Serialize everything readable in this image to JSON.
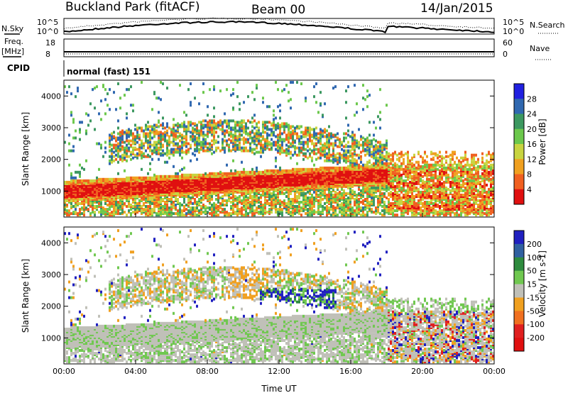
{
  "header": {
    "site": "Buckland Park (fitACF)",
    "beam": "Beam 00",
    "date": "14/Jan/2015"
  },
  "noise_panel": {
    "left_label": "N.Sky",
    "right_label": "N.Search",
    "left_ticks": [
      "10^5",
      "10^0"
    ],
    "right_ticks": [
      "10^5",
      "10^0"
    ]
  },
  "freq_panel": {
    "left_label": "Freq.",
    "left_unit": "[MHz]",
    "left_ticks": [
      "18",
      "8"
    ],
    "right_label": "Nave",
    "right_ticks": [
      "60",
      "0"
    ]
  },
  "cpid": {
    "label": "CPID",
    "value": "normal (fast) 151"
  },
  "chart_data": [
    {
      "type": "heatmap",
      "name": "power",
      "ylabel": "Slant Range [km]",
      "yticks": [
        1000,
        2000,
        3000,
        4000
      ],
      "ylim": [
        180,
        4500
      ],
      "x": [
        "00:00",
        "04:00",
        "08:00",
        "12:00",
        "16:00",
        "20:00",
        "00:00"
      ],
      "colorbar_label": "Power [dB]",
      "colorbar_ticks": [
        "4",
        "8",
        "12",
        "16",
        "20",
        "24",
        "28"
      ],
      "colorbar_colors": [
        "#2020e0",
        "#3068b0",
        "#3c9860",
        "#6cc84c",
        "#c8d440",
        "#f0a020",
        "#f06020",
        "#e01010"
      ]
    },
    {
      "type": "heatmap",
      "name": "velocity",
      "ylabel": "Slant Range [km]",
      "yticks": [
        1000,
        2000,
        3000,
        4000
      ],
      "ylim": [
        180,
        4500
      ],
      "x": [
        "00:00",
        "04:00",
        "08:00",
        "12:00",
        "16:00",
        "20:00",
        "00:00"
      ],
      "xlabel": "Time UT",
      "colorbar_label": "Velocity [m s-1]",
      "colorbar_ticks": [
        "200",
        "100",
        "50",
        "15",
        "-15",
        "-50",
        "-100",
        "-200"
      ],
      "colorbar_colors": [
        "#2020c0",
        "#3060a0",
        "#2e8b3e",
        "#70c850",
        "#c0c0b8",
        "#f0a020",
        "#f07020",
        "#e02020",
        "#e01010"
      ]
    }
  ]
}
